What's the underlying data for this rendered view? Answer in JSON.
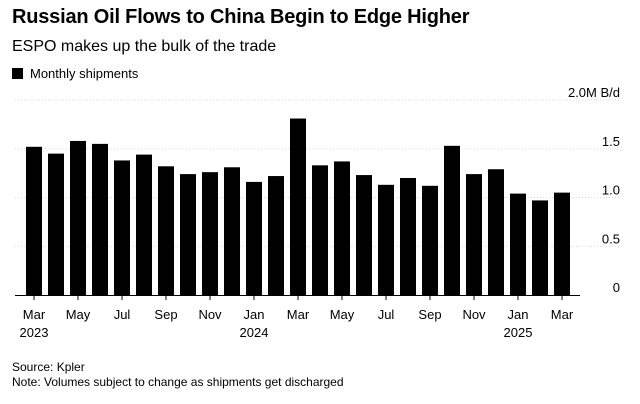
{
  "header": {
    "title": "Russian Oil Flows to China Begin to Edge Higher",
    "subtitle": "ESPO makes up the bulk of the trade"
  },
  "legend": {
    "label": "Monthly shipments",
    "color": "#000000"
  },
  "footer": {
    "source": "Source: Kpler",
    "note": "Note: Volumes subject to change as shipments get discharged"
  },
  "chart_data": {
    "type": "bar",
    "title": "Russian Oil Flows to China Begin to Edge Higher",
    "subtitle": "ESPO makes up the bulk of the trade",
    "series": [
      {
        "name": "Monthly shipments",
        "color": "#000000",
        "values": [
          1.52,
          1.45,
          1.58,
          1.55,
          1.38,
          1.44,
          1.32,
          1.24,
          1.26,
          1.31,
          1.16,
          1.22,
          1.81,
          1.33,
          1.37,
          1.23,
          1.13,
          1.2,
          1.12,
          1.53,
          1.24,
          1.29,
          1.04,
          0.97,
          1.05
        ]
      }
    ],
    "categories": [
      "Mar 2023",
      "Apr 2023",
      "May 2023",
      "Jun 2023",
      "Jul 2023",
      "Aug 2023",
      "Sep 2023",
      "Oct 2023",
      "Nov 2023",
      "Dec 2023",
      "Jan 2024",
      "Feb 2024",
      "Mar 2024",
      "Apr 2024",
      "May 2024",
      "Jun 2024",
      "Jul 2024",
      "Aug 2024",
      "Sep 2024",
      "Oct 2024",
      "Nov 2024",
      "Dec 2024",
      "Jan 2025",
      "Feb 2025",
      "Mar 2025"
    ],
    "x_tick_labels": [
      {
        "index": 0,
        "month": "Mar",
        "year": "2023"
      },
      {
        "index": 2,
        "month": "May",
        "year": ""
      },
      {
        "index": 4,
        "month": "Jul",
        "year": ""
      },
      {
        "index": 6,
        "month": "Sep",
        "year": ""
      },
      {
        "index": 8,
        "month": "Nov",
        "year": ""
      },
      {
        "index": 10,
        "month": "Jan",
        "year": "2024"
      },
      {
        "index": 12,
        "month": "Mar",
        "year": ""
      },
      {
        "index": 14,
        "month": "May",
        "year": ""
      },
      {
        "index": 16,
        "month": "Jul",
        "year": ""
      },
      {
        "index": 18,
        "month": "Sep",
        "year": ""
      },
      {
        "index": 20,
        "month": "Nov",
        "year": ""
      },
      {
        "index": 22,
        "month": "Jan",
        "year": "2025"
      },
      {
        "index": 24,
        "month": "Mar",
        "year": ""
      }
    ],
    "y_ticks": [
      {
        "value": 0,
        "label": "0"
      },
      {
        "value": 0.5,
        "label": "0.5"
      },
      {
        "value": 1.0,
        "label": "1.0"
      },
      {
        "value": 1.5,
        "label": "1.5"
      },
      {
        "value": 2.0,
        "label": "2.0M B/d"
      }
    ],
    "ylim": [
      0,
      2.0
    ],
    "y_axis_position": "right",
    "grid": true,
    "legend_position": "top-left"
  }
}
